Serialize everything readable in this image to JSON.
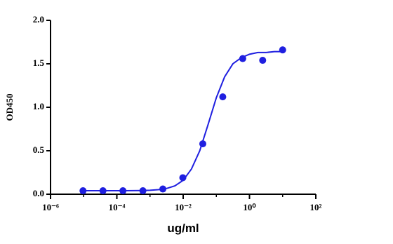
{
  "chart_data": {
    "type": "scatter",
    "xlabel": "ug/ml",
    "ylabel": "OD450",
    "xscale": "log",
    "xlim": [
      1e-06,
      100
    ],
    "ylim": [
      0,
      2.0
    ],
    "xticks": [
      {
        "value": 1e-06,
        "label": "10⁻⁶"
      },
      {
        "value": 0.0001,
        "label": "10⁻⁴"
      },
      {
        "value": 0.01,
        "label": "10⁻²"
      },
      {
        "value": 1,
        "label": "10⁰"
      },
      {
        "value": 100,
        "label": "10²"
      }
    ],
    "xminor": [
      1e-05,
      0.001,
      0.1,
      10
    ],
    "yticks": [
      {
        "value": 0,
        "label": "0.0"
      },
      {
        "value": 0.5,
        "label": "0.5"
      },
      {
        "value": 1,
        "label": "1.0"
      },
      {
        "value": 1.5,
        "label": "1.5"
      },
      {
        "value": 2,
        "label": "2.0"
      }
    ],
    "color": "#1f1fe0",
    "x": [
      9.5367431640625e-06,
      3.814697265625e-05,
      0.000152587890625,
      0.0006103515625,
      0.00244140625,
      0.009765625,
      0.0390625,
      0.15625,
      0.625,
      2.5,
      10
    ],
    "values": [
      0.04,
      0.04,
      0.04,
      0.04,
      0.06,
      0.19,
      0.58,
      1.12,
      1.56,
      1.54,
      1.66
    ],
    "fit": {
      "x": [
        1e-05,
        1.77828e-05,
        3.16228e-05,
        5.62341e-05,
        0.0001,
        0.000177828,
        0.000316228,
        0.000562341,
        0.001,
        0.00177828,
        0.00316228,
        0.00562341,
        0.01,
        0.0177828,
        0.0316228,
        0.0562341,
        0.1,
        0.177828,
        0.316228,
        0.562341,
        1,
        1.77828,
        3.16228,
        5.62341,
        10
      ],
      "values": [
        0.04,
        0.04,
        0.04,
        0.04,
        0.04,
        0.04,
        0.041,
        0.042,
        0.045,
        0.052,
        0.066,
        0.096,
        0.16,
        0.29,
        0.5,
        0.8,
        1.11,
        1.35,
        1.5,
        1.57,
        1.61,
        1.63,
        1.63,
        1.64,
        1.64
      ]
    }
  }
}
